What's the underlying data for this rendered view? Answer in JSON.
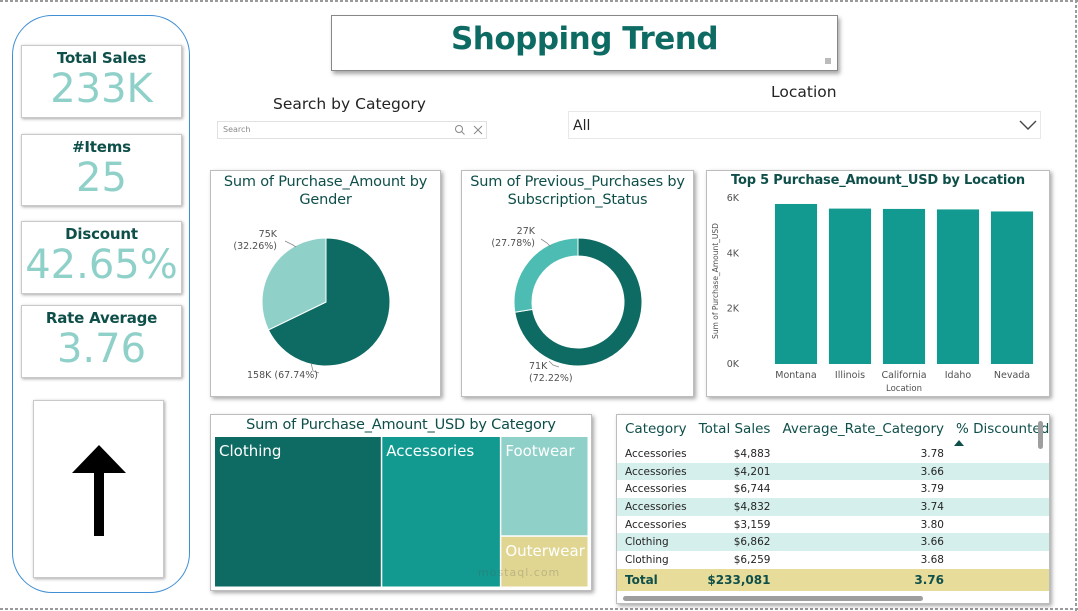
{
  "kpis": [
    {
      "label": "Total Sales",
      "value": "233K"
    },
    {
      "label": "#Items",
      "value": "25"
    },
    {
      "label": "Discount",
      "value": "42.65%"
    },
    {
      "label": "Rate Average",
      "value": "3.76"
    }
  ],
  "title": "Shopping Trend",
  "category_slicer": {
    "title": "Search by Category",
    "placeholder": "Search"
  },
  "location_slicer": {
    "title": "Location",
    "selected": "All"
  },
  "colors": {
    "dark_teal": "#0e6b63",
    "teal": "#139a90",
    "light_teal": "#8fd0c9",
    "sand": "#e0d692",
    "kpi_value": "#8fd0c9"
  },
  "chart_data": [
    {
      "type": "pie",
      "title": "Sum of Purchase_Amount by Gender",
      "slices": [
        {
          "value": 158,
          "label": "158K (67.74%)",
          "color": "#0e6b63"
        },
        {
          "value": 75,
          "label": "75K\n(32.26%)",
          "color": "#8fd0c9"
        }
      ]
    },
    {
      "type": "pie",
      "donut": true,
      "title": "Sum of Previous_Purchases by Subscription_Status",
      "slices": [
        {
          "value": 71,
          "label": "71K\n(72.22%)",
          "color": "#0e6b63"
        },
        {
          "value": 27,
          "label": "27K\n(27.78%)",
          "color": "#4dbdb4"
        }
      ]
    },
    {
      "type": "bar",
      "title": "Top 5 Purchase_Amount_USD by Location",
      "categories": [
        "Montana",
        "Illinois",
        "California",
        "Idaho",
        "Nevada"
      ],
      "values": [
        5784,
        5617,
        5605,
        5587,
        5514
      ],
      "xlabel": "Location",
      "ylabel": "Sum of Purchase_Amount_USD",
      "ylim": [
        0,
        6000
      ],
      "yticks": [
        "0K",
        "2K",
        "4K",
        "6K"
      ]
    },
    {
      "type": "treemap",
      "title": "Sum of Purchase_Amount_USD by Category",
      "items": [
        {
          "name": "Clothing",
          "value": 104264,
          "color": "#0e6b63"
        },
        {
          "name": "Accessories",
          "value": 74200,
          "color": "#139a90"
        },
        {
          "name": "Footwear",
          "value": 36093,
          "color": "#8fd0c9"
        },
        {
          "name": "Outerwear",
          "value": 18524,
          "color": "#e0d692"
        }
      ]
    }
  ],
  "table": {
    "headers": [
      "Category",
      "Total Sales",
      "Average_Rate_Category",
      "% Discounted S"
    ],
    "rows": [
      {
        "category": "Accessories",
        "sales": "$4,883",
        "rate": "3.78"
      },
      {
        "category": "Accessories",
        "sales": "$4,201",
        "rate": "3.66"
      },
      {
        "category": "Accessories",
        "sales": "$6,744",
        "rate": "3.79"
      },
      {
        "category": "Accessories",
        "sales": "$4,832",
        "rate": "3.74"
      },
      {
        "category": "Accessories",
        "sales": "$3,159",
        "rate": "3.80"
      },
      {
        "category": "Clothing",
        "sales": "$6,862",
        "rate": "3.66"
      },
      {
        "category": "Clothing",
        "sales": "$6,259",
        "rate": "3.68"
      }
    ],
    "total": {
      "label": "Total",
      "sales": "$233,081",
      "rate": "3.76",
      "disc": "("
    }
  },
  "watermark": "mostaql.com"
}
